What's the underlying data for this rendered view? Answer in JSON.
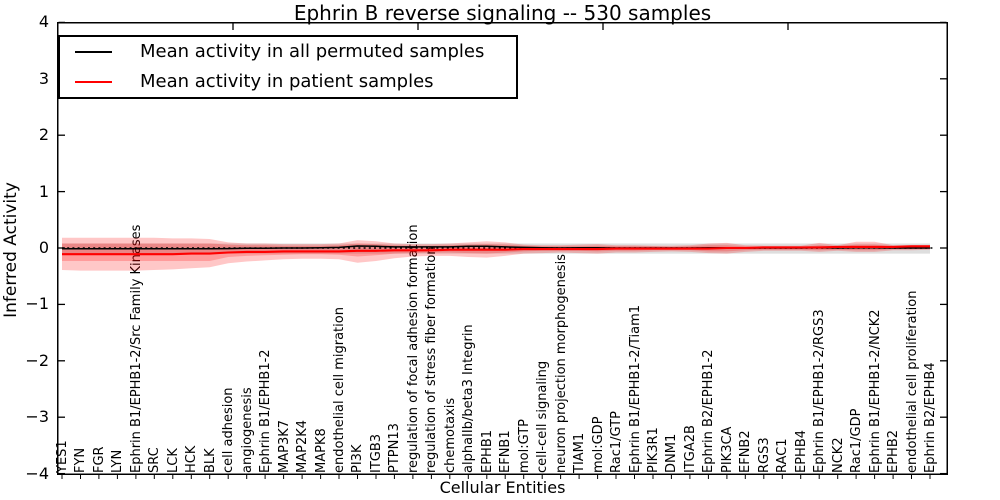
{
  "title": "Ephrin B reverse signaling -- 530 samples",
  "axes": {
    "x_label": "Cellular Entities",
    "y_label": "Inferred Activity",
    "y_ticks": [
      {
        "label": "4",
        "value": 4
      },
      {
        "label": "3",
        "value": 3
      },
      {
        "label": "2",
        "value": 2
      },
      {
        "label": "1",
        "value": 1
      },
      {
        "label": "0",
        "value": 0
      },
      {
        "label": "−1",
        "value": -1
      },
      {
        "label": "−2",
        "value": -2
      },
      {
        "label": "−3",
        "value": -3
      },
      {
        "label": "−4",
        "value": -4
      }
    ],
    "ylim": [
      -4,
      4
    ]
  },
  "legend": {
    "items": [
      {
        "label": "Mean activity in all permuted samples",
        "color": "#000000"
      },
      {
        "label": "Mean activity in patient samples",
        "color": "#ff0000"
      }
    ]
  },
  "colors": {
    "patient_line": "#ff0000",
    "permuted_line": "#000000",
    "patient_band": "rgba(255,0,0,0.22)",
    "permuted_band": "rgba(0,0,0,0.13)",
    "axis": "#000000",
    "background": "#ffffff"
  },
  "chart_data": {
    "type": "line",
    "title": "Ephrin B reverse signaling -- 530 samples",
    "xlabel": "Cellular Entities",
    "ylabel": "Inferred Activity",
    "ylim": [
      -4,
      4
    ],
    "grid": false,
    "legend_position": "upper left",
    "categories": [
      "YES1",
      "FYN",
      "FGR",
      "LYN",
      "Ephrin B1/EPHB1-2/Src Family Kinases",
      "SRC",
      "LCK",
      "HCK",
      "BLK",
      "cell adhesion",
      "angiogenesis",
      "Ephrin B1/EPHB1-2",
      "MAP3K7",
      "MAP2K4",
      "MAPK8",
      "endothelial cell migration",
      "PI3K",
      "ITGB3",
      "PTPN13",
      "regulation of focal adhesion formation",
      "regulation of stress fiber formation",
      "chemotaxis",
      "alphaIIb/beta3 Integrin",
      "EPHB1",
      "EFNB1",
      "mol:GTP",
      "cell-cell signaling",
      "neuron projection morphogenesis",
      "TIAM1",
      "mol:GDP",
      "Rac1/GTP",
      "Ephrin B1/EPHB1-2/Tiam1",
      "PIK3R1",
      "DNM1",
      "ITGA2B",
      "Ephrin B2/EPHB1-2",
      "PIK3CA",
      "EFNB2",
      "RGS3",
      "RAC1",
      "EPHB4",
      "Ephrin B1/EPHB1-2/RGS3",
      "NCK2",
      "Rac1/GDP",
      "Ephrin B1/EPHB1-2/NCK2",
      "EPHB2",
      "endothelial cell proliferation",
      "Ephrin B2/EPHB4"
    ],
    "series": [
      {
        "name": "Mean activity in all permuted samples",
        "color": "#000000",
        "values": [
          -0.015,
          -0.015,
          -0.015,
          -0.015,
          -0.015,
          -0.015,
          -0.015,
          -0.015,
          -0.015,
          -0.01,
          -0.005,
          -0.005,
          0,
          0,
          0.005,
          0.01,
          0.035,
          0.03,
          0.02,
          0.02,
          0.02,
          0.02,
          0.03,
          0.03,
          0.02,
          0.01,
          0.005,
          0,
          0.005,
          0.005,
          0,
          0,
          0,
          0,
          0,
          0.005,
          0.005,
          0,
          0,
          0,
          0,
          0.005,
          0,
          0.005,
          0.005,
          0,
          0,
          0
        ]
      },
      {
        "name": "Mean activity in patient samples",
        "color": "#ff0000",
        "values": [
          -0.11,
          -0.11,
          -0.11,
          -0.11,
          -0.11,
          -0.11,
          -0.11,
          -0.1,
          -0.1,
          -0.08,
          -0.07,
          -0.07,
          -0.06,
          -0.06,
          -0.06,
          -0.06,
          -0.05,
          -0.05,
          -0.04,
          -0.04,
          -0.04,
          -0.03,
          -0.03,
          -0.03,
          -0.03,
          -0.02,
          -0.02,
          -0.02,
          -0.02,
          -0.02,
          -0.01,
          -0.01,
          -0.01,
          -0.01,
          -0.01,
          -0.01,
          0,
          0,
          0.01,
          0.01,
          0.01,
          0.01,
          0.02,
          0.02,
          0.02,
          0.02,
          0.03,
          0.03
        ]
      }
    ],
    "bands": [
      {
        "name": "permuted-samples-spread",
        "color": "rgba(0,0,0,0.13)",
        "upper": [
          0.08,
          0.08,
          0.08,
          0.08,
          0.08,
          0.08,
          0.08,
          0.08,
          0.08,
          0.08,
          0.08,
          0.08,
          0.08,
          0.08,
          0.08,
          0.08,
          0.08,
          0.08,
          0.08,
          0.08,
          0.08,
          0.08,
          0.08,
          0.08,
          0.08,
          0.08,
          0.08,
          0.08,
          0.08,
          0.08,
          0.08,
          0.08,
          0.08,
          0.08,
          0.08,
          0.08,
          0.08,
          0.08,
          0.08,
          0.08,
          0.08,
          0.08,
          0.08,
          0.08,
          0.08,
          0.08,
          0.08,
          0.08
        ],
        "lower": [
          -0.1,
          -0.1,
          -0.1,
          -0.1,
          -0.1,
          -0.1,
          -0.1,
          -0.1,
          -0.1,
          -0.1,
          -0.1,
          -0.1,
          -0.1,
          -0.1,
          -0.1,
          -0.1,
          -0.1,
          -0.1,
          -0.1,
          -0.1,
          -0.1,
          -0.1,
          -0.1,
          -0.1,
          -0.1,
          -0.1,
          -0.1,
          -0.1,
          -0.1,
          -0.1,
          -0.1,
          -0.1,
          -0.1,
          -0.1,
          -0.1,
          -0.1,
          -0.1,
          -0.1,
          -0.1,
          -0.1,
          -0.1,
          -0.1,
          -0.1,
          -0.1,
          -0.1,
          -0.1,
          -0.1,
          -0.1
        ]
      },
      {
        "name": "patient-samples-outer-spread",
        "color": "rgba(255,0,0,0.22)",
        "upper": [
          0.18,
          0.18,
          0.18,
          0.18,
          0.18,
          0.18,
          0.17,
          0.17,
          0.16,
          0.1,
          0.08,
          0.08,
          0.07,
          0.07,
          0.07,
          0.08,
          0.14,
          0.12,
          0.08,
          0.07,
          0.07,
          0.08,
          0.1,
          0.12,
          0.1,
          0.06,
          0.05,
          0.05,
          0.06,
          0.07,
          0.05,
          0.05,
          0.04,
          0.04,
          0.05,
          0.08,
          0.09,
          0.05,
          0.04,
          0.04,
          0.04,
          0.09,
          0.05,
          0.11,
          0.11,
          0.05,
          0.05,
          0.05
        ],
        "lower": [
          -0.39,
          -0.4,
          -0.4,
          -0.4,
          -0.4,
          -0.39,
          -0.38,
          -0.36,
          -0.34,
          -0.27,
          -0.24,
          -0.22,
          -0.2,
          -0.19,
          -0.19,
          -0.2,
          -0.26,
          -0.23,
          -0.18,
          -0.15,
          -0.14,
          -0.14,
          -0.16,
          -0.17,
          -0.14,
          -0.1,
          -0.09,
          -0.08,
          -0.09,
          -0.1,
          -0.08,
          -0.08,
          -0.07,
          -0.06,
          -0.07,
          -0.09,
          -0.1,
          -0.07,
          -0.05,
          -0.05,
          -0.05,
          -0.07,
          -0.05,
          -0.07,
          -0.07,
          -0.04,
          -0.04,
          -0.03
        ]
      },
      {
        "name": "patient-samples-inner-spread",
        "color": "rgba(255,0,0,0.22)",
        "upper": [
          0.08,
          0.08,
          0.08,
          0.08,
          0.08,
          0.08,
          0.08,
          0.08,
          0.08,
          0.06,
          0.05,
          0.05,
          0.04,
          0.04,
          0.04,
          0.05,
          0.08,
          0.07,
          0.05,
          0.04,
          0.04,
          0.05,
          0.06,
          0.07,
          0.06,
          0.04,
          0.03,
          0.03,
          0.03,
          0.04,
          0.03,
          0.03,
          0.03,
          0.02,
          0.03,
          0.05,
          0.05,
          0.03,
          0.02,
          0.02,
          0.02,
          0.05,
          0.03,
          0.06,
          0.06,
          0.03,
          0.03,
          0.03
        ],
        "lower": [
          -0.23,
          -0.23,
          -0.23,
          -0.23,
          -0.23,
          -0.23,
          -0.23,
          -0.23,
          -0.23,
          -0.16,
          -0.14,
          -0.13,
          -0.12,
          -0.11,
          -0.11,
          -0.12,
          -0.15,
          -0.13,
          -0.1,
          -0.09,
          -0.08,
          -0.08,
          -0.09,
          -0.1,
          -0.08,
          -0.06,
          -0.05,
          -0.05,
          -0.05,
          -0.06,
          -0.05,
          -0.05,
          -0.04,
          -0.04,
          -0.04,
          -0.06,
          -0.06,
          -0.04,
          -0.03,
          -0.03,
          -0.03,
          -0.04,
          -0.03,
          -0.04,
          -0.04,
          -0.02,
          -0.02,
          -0.01
        ]
      }
    ],
    "zero_line": {
      "style": "dotted",
      "color": "#000000",
      "y": 0
    }
  }
}
